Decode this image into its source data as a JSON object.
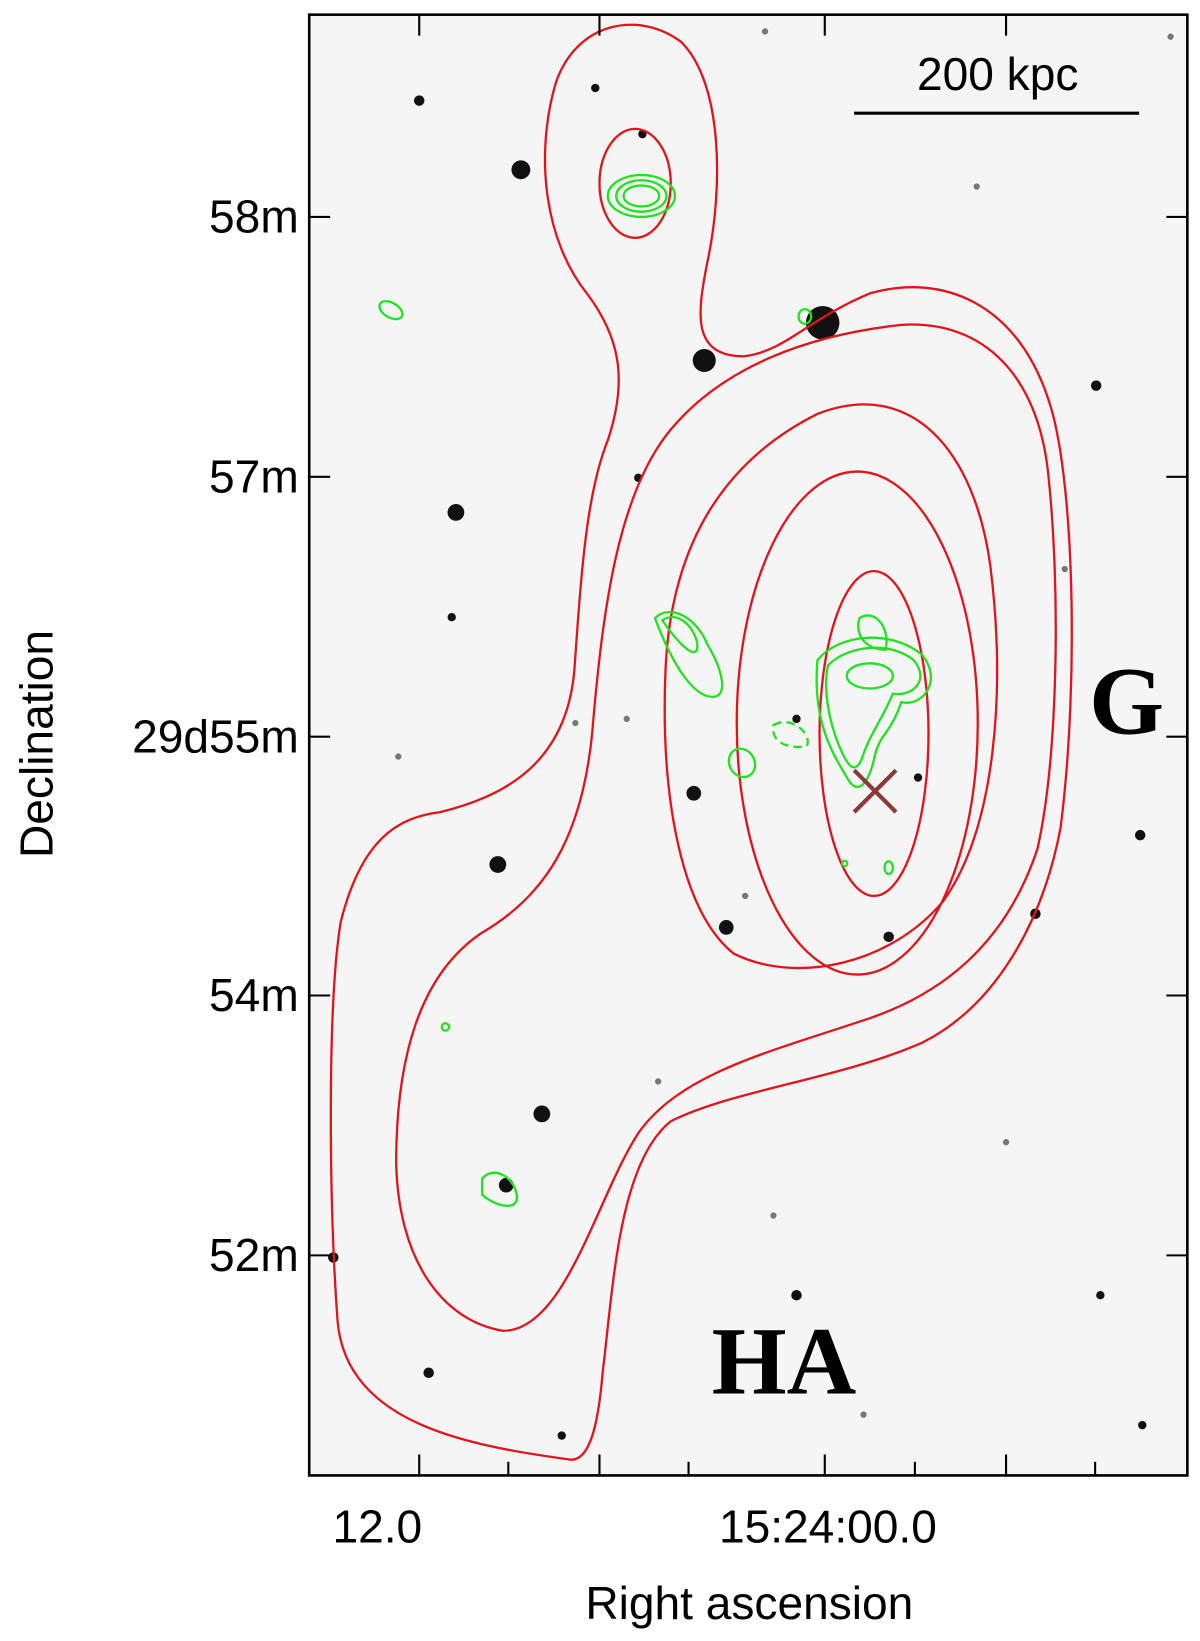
{
  "axes": {
    "y_label": "Declination",
    "x_label": "Right ascension",
    "y_ticks": [
      "58m",
      "57m",
      "29d55m",
      "54m",
      "52m"
    ],
    "x_ticks": [
      "12.0",
      "15:24:00.0"
    ]
  },
  "annotations": {
    "scale_bar": "200 kpc",
    "labels": [
      "G",
      "HA"
    ]
  }
}
